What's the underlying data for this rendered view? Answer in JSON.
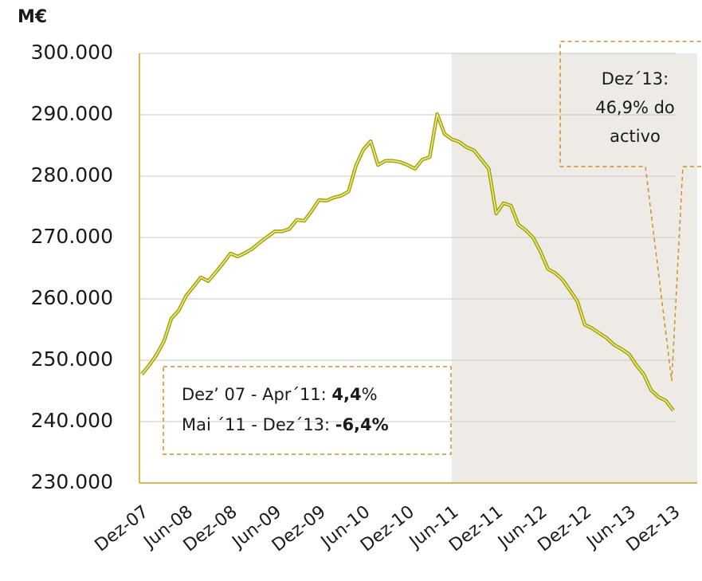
{
  "chart_data": {
    "type": "line",
    "y_label": "M€",
    "categories": [
      "Dez-07",
      null,
      null,
      null,
      null,
      null,
      "Jun-08",
      null,
      null,
      null,
      null,
      null,
      "Dez-08",
      null,
      null,
      null,
      null,
      null,
      "Jun-09",
      null,
      null,
      null,
      null,
      null,
      "Dez-09",
      null,
      null,
      null,
      null,
      null,
      "Jun-10",
      null,
      null,
      null,
      null,
      null,
      "Dez-10",
      null,
      null,
      null,
      null,
      null,
      "Jun-11",
      null,
      null,
      null,
      null,
      null,
      "Dez-11",
      null,
      null,
      null,
      null,
      null,
      "Jun-12",
      null,
      null,
      null,
      null,
      null,
      "Dez-12",
      null,
      null,
      null,
      null,
      null,
      "Jun-13",
      null,
      null,
      null,
      null,
      null,
      "Dez-13"
    ],
    "values": [
      247700,
      249200,
      250900,
      253100,
      256800,
      258100,
      260500,
      262000,
      263500,
      262900,
      264300,
      265800,
      267400,
      266900,
      267500,
      268200,
      269200,
      270100,
      271000,
      271000,
      271400,
      272900,
      272700,
      274300,
      276100,
      276000,
      276500,
      276800,
      277500,
      281700,
      284300,
      285700,
      281800,
      282500,
      282500,
      282300,
      281800,
      281200,
      282700,
      283100,
      290100,
      286900,
      286000,
      285600,
      284700,
      284200,
      282700,
      281200,
      273900,
      275600,
      275200,
      272100,
      271200,
      270000,
      267700,
      264900,
      264200,
      263100,
      261400,
      259600,
      255800,
      255200,
      254400,
      253600,
      252500,
      251800,
      251000,
      249200,
      247700,
      245100,
      244000,
      243400,
      241800
    ],
    "color": "#a6a600",
    "ylim": [
      230000,
      300000
    ],
    "yticks": [
      {
        "value": 230000,
        "label": "230.000"
      },
      {
        "value": 240000,
        "label": "240.000"
      },
      {
        "value": 250000,
        "label": "250.000"
      },
      {
        "value": 260000,
        "label": "260.000"
      },
      {
        "value": 270000,
        "label": "270.000"
      },
      {
        "value": 280000,
        "label": "280.000"
      },
      {
        "value": 290000,
        "label": "290.000"
      },
      {
        "value": 300000,
        "label": "300.000"
      }
    ],
    "grid": true,
    "annotations": [
      {
        "lines": [
          [
            {
              "text": "Dez’ 07 - Apr´11: "
            },
            {
              "text": "4,4",
              "bold": true
            },
            {
              "text": "%"
            }
          ],
          [
            {
              "text": "Mai ´11 - Dez´13: "
            },
            {
              "text": "-6,4%",
              "bold": true
            }
          ]
        ]
      },
      {
        "lines": [
          [
            {
              "text": "Dez´13:"
            }
          ],
          [
            {
              "text": "46,9% do"
            }
          ],
          [
            {
              "text": "activo"
            }
          ]
        ]
      }
    ]
  }
}
